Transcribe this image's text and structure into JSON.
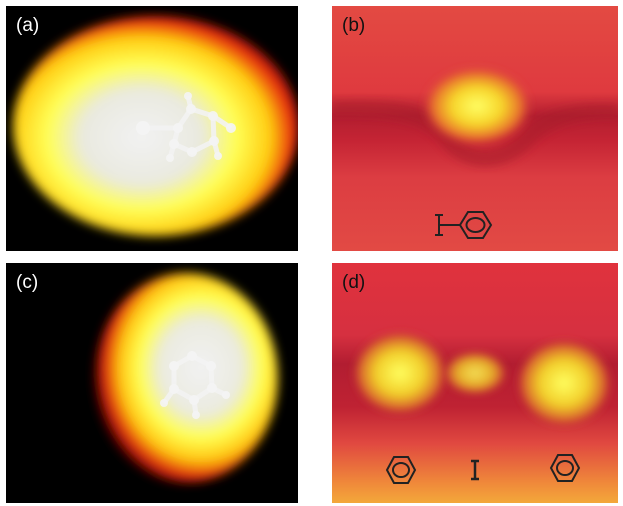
{
  "panels": [
    {
      "label": "(a)",
      "background": "#000000",
      "depicts": "simulated-molecule-image"
    },
    {
      "label": "(b)",
      "background": "#d8303a",
      "depicts": "stm-image-single-molecule"
    },
    {
      "label": "(c)",
      "background": "#000000",
      "depicts": "simulated-molecule-image"
    },
    {
      "label": "(d)",
      "background": "#d8303a",
      "depicts": "stm-image-two-molecules"
    }
  ],
  "colors": {
    "red": "#e21e1e",
    "yellow": "#ffff40",
    "white": "#f4f4f4",
    "stm_red": "#dc3641"
  }
}
